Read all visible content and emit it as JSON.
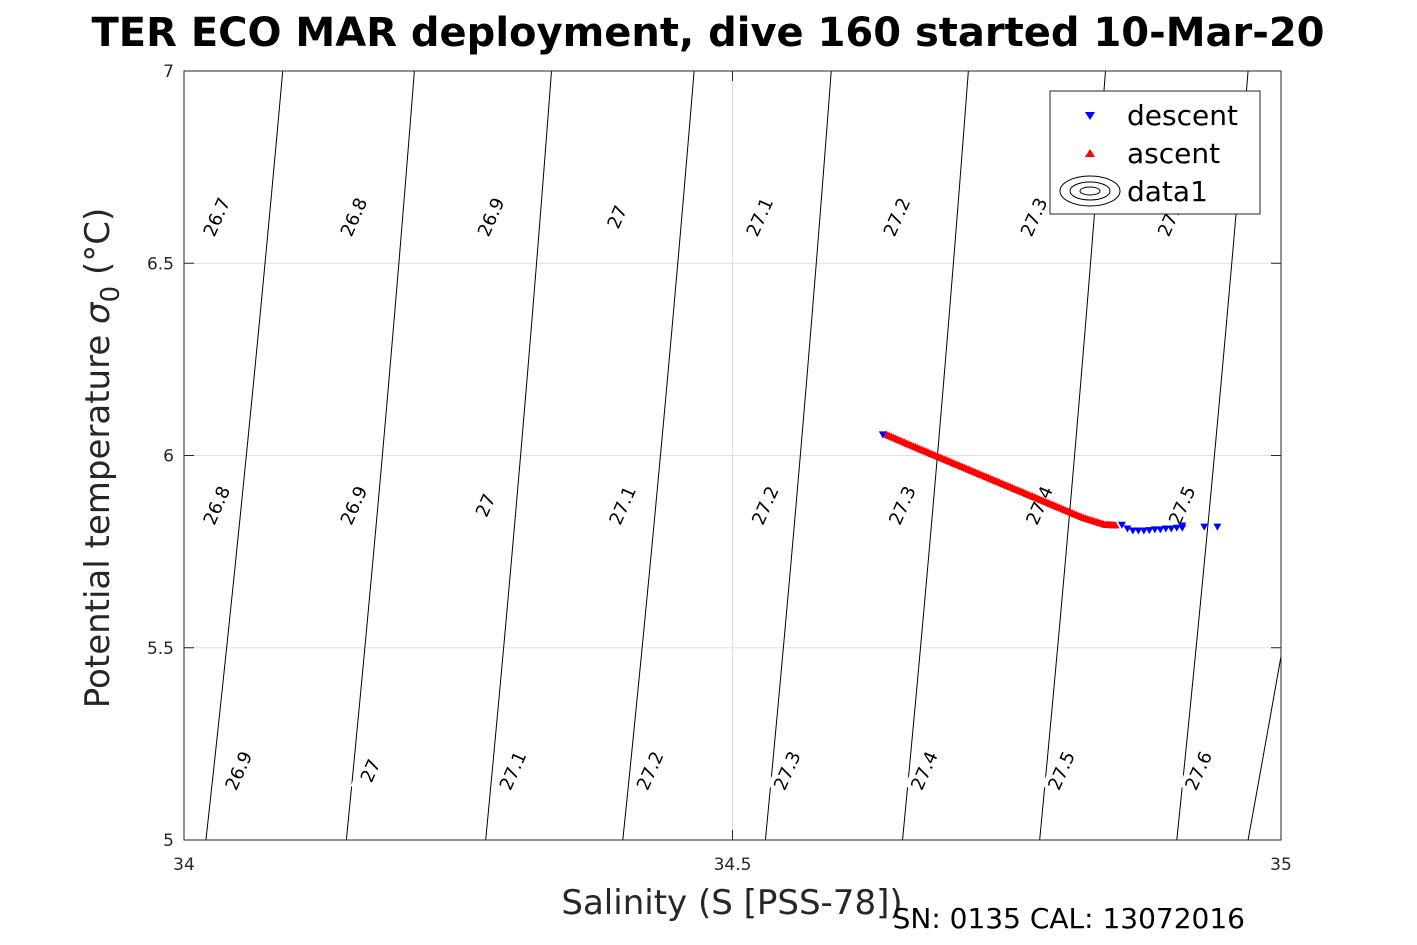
{
  "chart_data": {
    "type": "scatter",
    "title": "TER ECO MAR deployment, dive 160 started 10-Mar-20",
    "xlabel": "Salinity (S [PSS-78])",
    "ylabel": "Potential temperature",
    "ylabel_symbol": "σ",
    "ylabel_subscript": "0",
    "ylabel_unit": "(°C)",
    "xlim": [
      34,
      35
    ],
    "ylim": [
      5,
      7
    ],
    "xticks": [
      34,
      34.5,
      35
    ],
    "xtick_labels": [
      "34",
      "34.5",
      "35"
    ],
    "yticks": [
      5,
      5.5,
      6,
      6.5,
      7
    ],
    "ytick_labels": [
      "5",
      "5.5",
      "6",
      "6.5",
      "7"
    ],
    "grid": true,
    "legend_position": "top-right",
    "legend": [
      "descent",
      "ascent",
      "data1"
    ],
    "series": [
      {
        "name": "descent",
        "marker": "triangle-down",
        "color": "#0000ff",
        "x": [
          34.637,
          34.855,
          34.86,
          34.865,
          34.87,
          34.875,
          34.88,
          34.885,
          34.89,
          34.895,
          34.9,
          34.905,
          34.91,
          34.91,
          34.93,
          34.942
        ],
        "y": [
          6.055,
          5.82,
          5.81,
          5.805,
          5.805,
          5.805,
          5.806,
          5.808,
          5.808,
          5.81,
          5.81,
          5.812,
          5.812,
          5.818,
          5.815,
          5.815
        ]
      },
      {
        "name": "ascent",
        "marker": "triangle-up",
        "color": "#ff0000",
        "x": [
          34.64,
          34.66,
          34.68,
          34.7,
          34.72,
          34.74,
          34.76,
          34.78,
          34.8,
          34.82,
          34.84,
          34.85
        ],
        "y": [
          6.055,
          6.03,
          6.006,
          5.982,
          5.958,
          5.934,
          5.91,
          5.886,
          5.862,
          5.838,
          5.82,
          5.818
        ]
      }
    ],
    "contours": [
      {
        "level": 26.7,
        "label": "26.7",
        "label_pos": [
          34.03,
          6.62
        ]
      },
      {
        "level": 26.8,
        "label": "26.8",
        "label_pos": [
          34.155,
          6.62
        ]
      },
      {
        "level": 26.9,
        "label": "26.9",
        "label_pos": [
          34.28,
          6.62
        ]
      },
      {
        "level": 27.0,
        "label": "27",
        "label_pos": [
          34.395,
          6.62
        ]
      },
      {
        "level": 27.1,
        "label": "27.1",
        "label_pos": [
          34.525,
          6.62
        ]
      },
      {
        "level": 27.2,
        "label": "27.2",
        "label_pos": [
          34.65,
          6.62
        ]
      },
      {
        "level": 27.3,
        "label": "27.3",
        "label_pos": [
          34.775,
          6.62
        ]
      },
      {
        "level": 27.4,
        "label": "27.4",
        "label_pos": [
          34.9,
          6.62
        ]
      },
      {
        "level": 26.8,
        "label": "26.8",
        "label_pos": [
          34.03,
          5.87
        ]
      },
      {
        "level": 26.9,
        "label": "26.9",
        "label_pos": [
          34.155,
          5.87
        ]
      },
      {
        "level": 27.0,
        "label": "27",
        "label_pos": [
          34.275,
          5.87
        ]
      },
      {
        "level": 27.1,
        "label": "27.1",
        "label_pos": [
          34.4,
          5.87
        ]
      },
      {
        "level": 27.2,
        "label": "27.2",
        "label_pos": [
          34.53,
          5.87
        ]
      },
      {
        "level": 27.3,
        "label": "27.3",
        "label_pos": [
          34.655,
          5.87
        ]
      },
      {
        "level": 27.4,
        "label": "27.4",
        "label_pos": [
          34.78,
          5.87
        ]
      },
      {
        "level": 27.5,
        "label": "27.5",
        "label_pos": [
          34.91,
          5.87
        ]
      },
      {
        "level": 26.9,
        "label": "26.9",
        "label_pos": [
          34.05,
          5.18
        ]
      },
      {
        "level": 27.0,
        "label": "27",
        "label_pos": [
          34.17,
          5.18
        ]
      },
      {
        "level": 27.1,
        "label": "27.1",
        "label_pos": [
          34.3,
          5.18
        ]
      },
      {
        "level": 27.2,
        "label": "27.2",
        "label_pos": [
          34.425,
          5.18
        ]
      },
      {
        "level": 27.3,
        "label": "27.3",
        "label_pos": [
          34.55,
          5.18
        ]
      },
      {
        "level": 27.4,
        "label": "27.4",
        "label_pos": [
          34.675,
          5.18
        ]
      },
      {
        "level": 27.5,
        "label": "27.5",
        "label_pos": [
          34.8,
          5.18
        ]
      },
      {
        "level": 27.6,
        "label": "27.6",
        "label_pos": [
          34.925,
          5.18
        ]
      }
    ],
    "contour_lines": [
      {
        "x_bottom": 34.02,
        "x_top": 34.09
      },
      {
        "x_bottom": 34.148,
        "x_top": 34.21
      },
      {
        "x_bottom": 34.275,
        "x_top": 34.335
      },
      {
        "x_bottom": 34.4,
        "x_top": 34.465
      },
      {
        "x_bottom": 34.53,
        "x_top": 34.59
      },
      {
        "x_bottom": 34.655,
        "x_top": 34.715
      },
      {
        "x_bottom": 34.78,
        "x_top": 34.84
      },
      {
        "x_bottom": 34.905,
        "x_top": 34.97
      },
      {
        "x_bottom": 34.97,
        "x_top": 35.09
      },
      {
        "x_bottom": 33.9,
        "x_top": 33.965
      }
    ]
  },
  "footer": "SN: 0135  CAL: 13072016"
}
